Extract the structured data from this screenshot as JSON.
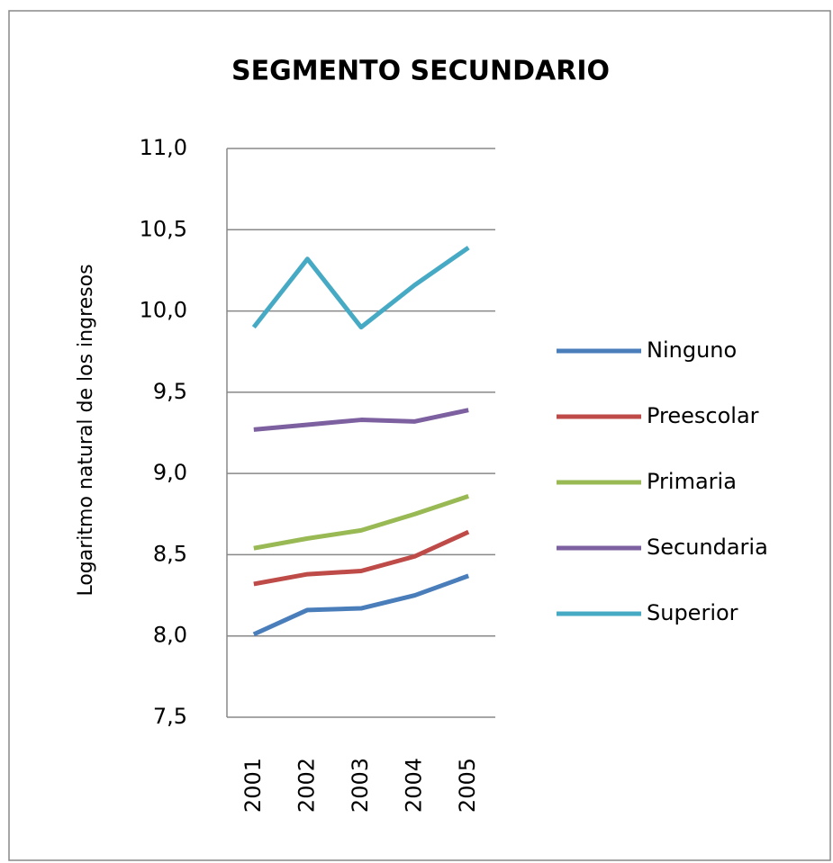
{
  "chart_data": {
    "type": "line",
    "title": "SEGMENTO SECUNDARIO",
    "y_label": "Logaritmo natural de los ingresos",
    "categories": [
      "2001",
      "2002",
      "2003",
      "2004",
      "2005"
    ],
    "series": [
      {
        "name": "Ninguno",
        "color": "#4a7ebb",
        "values": [
          8.01,
          8.16,
          8.17,
          8.25,
          8.37
        ]
      },
      {
        "name": "Preescolar",
        "color": "#be4b48",
        "values": [
          8.32,
          8.38,
          8.4,
          8.49,
          8.64
        ]
      },
      {
        "name": "Primaria",
        "color": "#98b954",
        "values": [
          8.54,
          8.6,
          8.65,
          8.75,
          8.86
        ]
      },
      {
        "name": "Secundaria",
        "color": "#7d60a0",
        "values": [
          9.27,
          9.3,
          9.33,
          9.32,
          9.39
        ]
      },
      {
        "name": "Superior",
        "color": "#46aac5",
        "values": [
          9.9,
          10.32,
          9.9,
          10.16,
          10.39
        ]
      }
    ],
    "ylim": [
      7.5,
      11.0
    ],
    "yticks": [
      {
        "value": 7.5,
        "label": "7,5"
      },
      {
        "value": 8.0,
        "label": "8,0"
      },
      {
        "value": 8.5,
        "label": "8,5"
      },
      {
        "value": 9.0,
        "label": "9,0"
      },
      {
        "value": 9.5,
        "label": "9,5"
      },
      {
        "value": 10.0,
        "label": "10,0"
      },
      {
        "value": 10.5,
        "label": "10,5"
      },
      {
        "value": 11.0,
        "label": "11,0"
      }
    ],
    "grid": true,
    "legend": "right"
  }
}
